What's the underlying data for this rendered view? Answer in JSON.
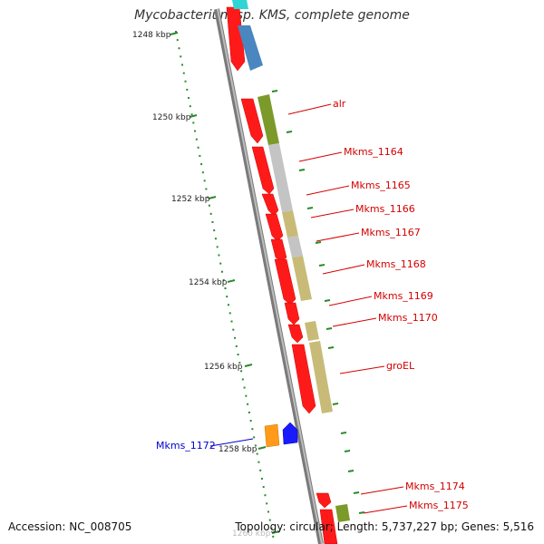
{
  "title": "Mycobacterium sp. KMS, complete genome",
  "accession": "Accession: NC_008705",
  "summary": "Topology: circular; Length: 5,737,227 bp; Genes: 5,516",
  "colors": {
    "gene_red": "#ff1a1a",
    "label_red": "#d40000",
    "label_blue": "#0000d0",
    "tick_green": "#2a8a2a",
    "backbone": "#8c8c8c",
    "olive": "#7b9a2a",
    "khaki": "#c8bb78",
    "grey_gene": "#c4c4c4",
    "steel_blue": "#4a86c0",
    "cyan": "#2fd4d4",
    "orange": "#ff9a1a",
    "blue_gene": "#1a1aff"
  },
  "ruler": [
    {
      "label": "1248 kbp"
    },
    {
      "label": "1250 kbp"
    },
    {
      "label": "1252 kbp"
    },
    {
      "label": "1254 kbp"
    },
    {
      "label": "1256 kbp"
    },
    {
      "label": "1258 kbp"
    },
    {
      "label": "1260 kbp"
    }
  ],
  "gene_labels": [
    {
      "text": "alr"
    },
    {
      "text": "Mkms_1164"
    },
    {
      "text": "Mkms_1165"
    },
    {
      "text": "Mkms_1166"
    },
    {
      "text": "Mkms_1167"
    },
    {
      "text": "Mkms_1168"
    },
    {
      "text": "Mkms_1169"
    },
    {
      "text": "Mkms_1170"
    },
    {
      "text": "groEL"
    },
    {
      "text": "Mkms_1172"
    },
    {
      "text": "Mkms_1174"
    },
    {
      "text": "Mkms_1175"
    }
  ]
}
